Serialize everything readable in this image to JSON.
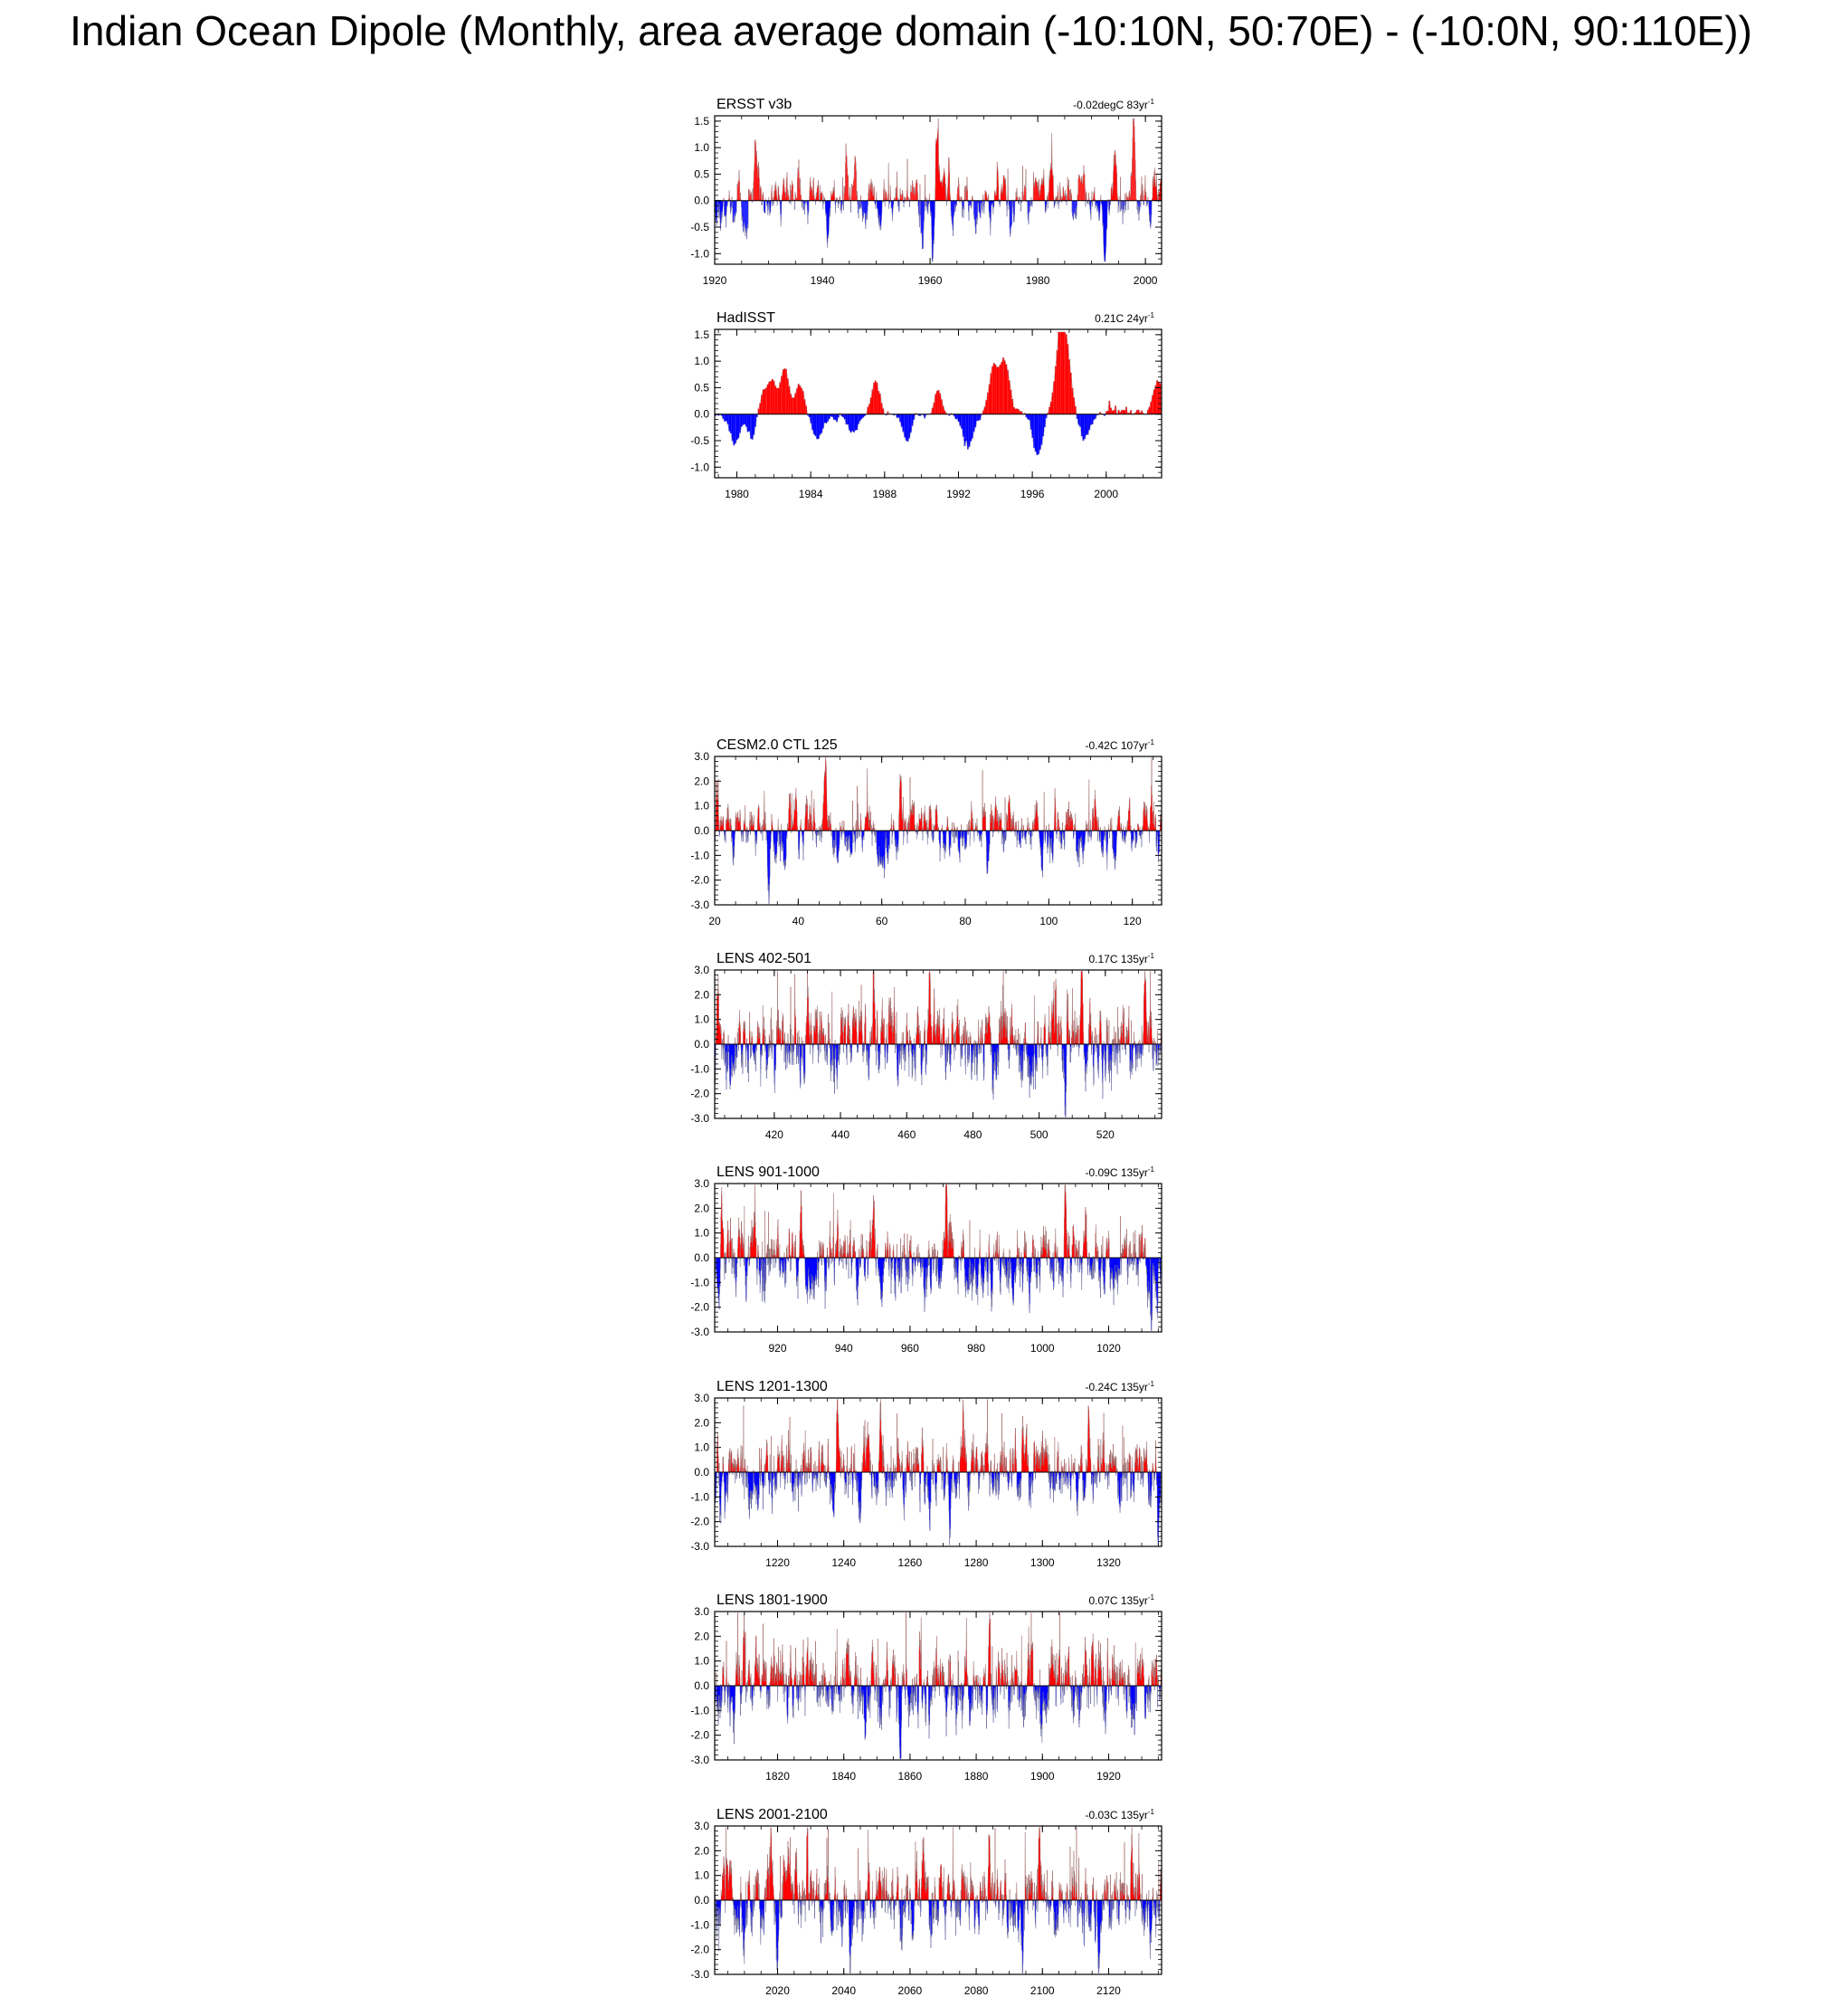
{
  "page_title": "Indian Ocean Dipole (Monthly, area average domain (-10:10N, 50:70E) - (-10:0N, 90:110E))",
  "colors": {
    "positive": "#ff0000",
    "negative": "#0000ff",
    "axis": "#000000",
    "trace": "#888888"
  },
  "chart_data": [
    {
      "type": "bar",
      "title": "ERSST v3b",
      "trend_value": "-0.02degC 83yr",
      "trend_exponent": "-1",
      "x_range": [
        1920,
        2003
      ],
      "ylim": [
        -1.2,
        1.6
      ],
      "yticks": [
        -1.0,
        -0.5,
        0.0,
        0.5,
        1.0,
        1.5
      ],
      "ytick_labels": [
        "-1.0",
        "-0.5",
        "0.0",
        "0.5",
        "1.0",
        "1.5"
      ],
      "xticks": [
        1920,
        1940,
        1960,
        1980,
        2000
      ],
      "xtick_labels": [
        "1920",
        "1940",
        "1960",
        "1980",
        "2000"
      ],
      "amplitude": 0.45,
      "seed": 11,
      "peaks": [
        [
          1924.5,
          0.65
        ],
        [
          1927.5,
          0.6
        ],
        [
          1935.5,
          0.7
        ],
        [
          1944.5,
          0.95
        ],
        [
          1946,
          0.7
        ],
        [
          1961.3,
          1.1
        ],
        [
          1963.5,
          0.7
        ],
        [
          1972.5,
          0.6
        ],
        [
          1982.5,
          0.85
        ],
        [
          1994.5,
          0.9
        ],
        [
          1997.8,
          1.25
        ]
      ],
      "troughs": [
        [
          1926,
          -0.85
        ],
        [
          1941,
          -0.8
        ],
        [
          1958.5,
          -0.75
        ],
        [
          1960.5,
          -0.9
        ],
        [
          1975,
          -0.7
        ],
        [
          1992.5,
          -0.85
        ],
        [
          2001,
          -0.7
        ]
      ]
    },
    {
      "type": "bar",
      "title": "HadISST",
      "trend_value": "0.21C 24yr",
      "trend_exponent": "-1",
      "x_range": [
        1978.8,
        2003
      ],
      "ylim": [
        -1.2,
        1.6
      ],
      "yticks": [
        -1.0,
        -0.5,
        0.0,
        0.5,
        1.0,
        1.5
      ],
      "ytick_labels": [
        "-1.0",
        "-0.5",
        "0.0",
        "0.5",
        "1.0",
        "1.5"
      ],
      "xticks": [
        1980,
        1984,
        1988,
        1992,
        1996,
        2000
      ],
      "xtick_labels": [
        "1980",
        "1984",
        "1988",
        "1992",
        "1996",
        "2000"
      ],
      "amplitude": 0.1,
      "seed": 23,
      "peaks": [
        [
          1981.3,
          0.45
        ],
        [
          1981.9,
          0.65
        ],
        [
          1982.6,
          0.8
        ],
        [
          1983.4,
          0.55
        ],
        [
          1987.5,
          0.55
        ],
        [
          1990.9,
          0.45
        ],
        [
          1993.9,
          0.9
        ],
        [
          1994.5,
          1.0
        ],
        [
          1997.5,
          1.45
        ],
        [
          1997.9,
          1.0
        ],
        [
          2002.8,
          0.6
        ]
      ],
      "troughs": [
        [
          1979.9,
          -0.55
        ],
        [
          1980.9,
          -0.55
        ],
        [
          1984.3,
          -0.45
        ],
        [
          1986.3,
          -0.35
        ],
        [
          1989.2,
          -0.5
        ],
        [
          1992.5,
          -0.65
        ],
        [
          1996.3,
          -0.8
        ],
        [
          1998.8,
          -0.5
        ]
      ]
    },
    {
      "type": "bar",
      "title": "CESM2.0 CTL 125",
      "trend_value": "-0.42C 107yr",
      "trend_exponent": "-1",
      "x_range": [
        20,
        127
      ],
      "ylim": [
        -3.0,
        3.0
      ],
      "yticks": [
        -3.0,
        -2.0,
        -1.0,
        0.0,
        1.0,
        2.0,
        3.0
      ],
      "ytick_labels": [
        "-3.0",
        "-2.0",
        "-1.0",
        "0.0",
        "1.0",
        "2.0",
        "3.0"
      ],
      "xticks": [
        20,
        40,
        60,
        80,
        100,
        120
      ],
      "xtick_labels": [
        "20",
        "40",
        "60",
        "80",
        "100",
        "120"
      ],
      "amplitude": 1.1,
      "seed": 37,
      "peaks": [
        [
          20.5,
          1.9
        ],
        [
          46.5,
          1.8
        ],
        [
          64.5,
          2.0
        ],
        [
          90.5,
          1.3
        ],
        [
          101.5,
          1.6
        ],
        [
          124.5,
          1.7
        ]
      ],
      "troughs": [
        [
          33,
          -1.5
        ],
        [
          37,
          -1.5
        ],
        [
          85.5,
          -2.0
        ],
        [
          113,
          -1.5
        ]
      ]
    },
    {
      "type": "bar",
      "title": "LENS 402-501",
      "trend_value": "0.17C 135yr",
      "trend_exponent": "-1",
      "x_range": [
        402,
        537
      ],
      "ylim": [
        -3.0,
        3.0
      ],
      "yticks": [
        -3.0,
        -2.0,
        -1.0,
        0.0,
        1.0,
        2.0,
        3.0
      ],
      "ytick_labels": [
        "-3.0",
        "-2.0",
        "-1.0",
        "0.0",
        "1.0",
        "2.0",
        "3.0"
      ],
      "xticks": [
        420,
        440,
        460,
        480,
        500,
        520
      ],
      "xtick_labels": [
        "420",
        "440",
        "460",
        "480",
        "500",
        "520"
      ],
      "amplitude": 1.5,
      "seed": 41,
      "peaks": [
        [
          403,
          2.6
        ],
        [
          430,
          2.6
        ],
        [
          450,
          2.4
        ],
        [
          467,
          2.4
        ],
        [
          505,
          2.5
        ],
        [
          513,
          2.5
        ],
        [
          532,
          2.3
        ]
      ],
      "troughs": [
        [
          416,
          -2.1
        ],
        [
          445,
          -1.8
        ],
        [
          486,
          -2.2
        ],
        [
          508,
          -2.6
        ]
      ]
    },
    {
      "type": "bar",
      "title": "LENS 901-1000",
      "trend_value": "-0.09C 135yr",
      "trend_exponent": "-1",
      "x_range": [
        901,
        1036
      ],
      "ylim": [
        -3.0,
        3.0
      ],
      "yticks": [
        -3.0,
        -2.0,
        -1.0,
        0.0,
        1.0,
        2.0,
        3.0
      ],
      "ytick_labels": [
        "-3.0",
        "-2.0",
        "-1.0",
        "0.0",
        "1.0",
        "2.0",
        "3.0"
      ],
      "xticks": [
        920,
        940,
        960,
        980,
        1000,
        1020
      ],
      "xtick_labels": [
        "920",
        "940",
        "960",
        "980",
        "1000",
        "1020"
      ],
      "amplitude": 1.4,
      "seed": 53,
      "peaks": [
        [
          903,
          1.8
        ],
        [
          927,
          2.5
        ],
        [
          949,
          2.4
        ],
        [
          971,
          2.8
        ],
        [
          1007,
          2.6
        ],
        [
          1013,
          2.1
        ]
      ],
      "troughs": [
        [
          926,
          -2.2
        ],
        [
          944,
          -1.8
        ],
        [
          996,
          -2.1
        ],
        [
          1033,
          -1.8
        ]
      ]
    },
    {
      "type": "bar",
      "title": "LENS 1201-1300",
      "trend_value": "-0.24C 135yr",
      "trend_exponent": "-1",
      "x_range": [
        1201,
        1336
      ],
      "ylim": [
        -3.0,
        3.0
      ],
      "yticks": [
        -3.0,
        -2.0,
        -1.0,
        0.0,
        1.0,
        2.0,
        3.0
      ],
      "ytick_labels": [
        "-3.0",
        "-2.0",
        "-1.0",
        "0.0",
        "1.0",
        "2.0",
        "3.0"
      ],
      "xticks": [
        1220,
        1240,
        1260,
        1280,
        1300,
        1320
      ],
      "xtick_labels": [
        "1220",
        "1240",
        "1260",
        "1280",
        "1300",
        "1320"
      ],
      "amplitude": 1.3,
      "seed": 67,
      "peaks": [
        [
          1202,
          2.4
        ],
        [
          1238,
          2.4
        ],
        [
          1251,
          2.5
        ],
        [
          1276,
          2.4
        ],
        [
          1294,
          2.5
        ],
        [
          1314,
          2.3
        ]
      ],
      "troughs": [
        [
          1204,
          -2.1
        ],
        [
          1266,
          -2.4
        ],
        [
          1272,
          -2.6
        ],
        [
          1335,
          -1.9
        ]
      ]
    },
    {
      "type": "bar",
      "title": "LENS 1801-1900",
      "trend_value": "0.07C 135yr",
      "trend_exponent": "-1",
      "x_range": [
        1801,
        1936
      ],
      "ylim": [
        -3.0,
        3.0
      ],
      "yticks": [
        -3.0,
        -2.0,
        -1.0,
        0.0,
        1.0,
        2.0,
        3.0
      ],
      "ytick_labels": [
        "-3.0",
        "-2.0",
        "-1.0",
        "0.0",
        "1.0",
        "2.0",
        "3.0"
      ],
      "xticks": [
        1820,
        1840,
        1860,
        1880,
        1900,
        1920
      ],
      "xtick_labels": [
        "1820",
        "1840",
        "1860",
        "1880",
        "1900",
        "1920"
      ],
      "amplitude": 1.5,
      "seed": 79,
      "peaks": [
        [
          1810,
          2.8
        ],
        [
          1829,
          2.3
        ],
        [
          1863,
          2.6
        ],
        [
          1884,
          2.4
        ],
        [
          1910,
          2.8
        ],
        [
          1913,
          2.4
        ]
      ],
      "troughs": [
        [
          1826,
          -2.1
        ],
        [
          1857,
          -2.1
        ],
        [
          1876,
          -1.9
        ],
        [
          1910,
          -2.1
        ]
      ]
    },
    {
      "type": "bar",
      "title": "LENS 2001-2100",
      "trend_value": "-0.03C 135yr",
      "trend_exponent": "-1",
      "x_range": [
        2001,
        2136
      ],
      "ylim": [
        -3.0,
        3.0
      ],
      "yticks": [
        -3.0,
        -2.0,
        -1.0,
        0.0,
        1.0,
        2.0,
        3.0
      ],
      "ytick_labels": [
        "-3.0",
        "-2.0",
        "-1.0",
        "0.0",
        "1.0",
        "2.0",
        "3.0"
      ],
      "xticks": [
        2020,
        2040,
        2060,
        2080,
        2100,
        2120
      ],
      "xtick_labels": [
        "2020",
        "2040",
        "2060",
        "2080",
        "2100",
        "2120"
      ],
      "amplitude": 1.5,
      "seed": 83,
      "peaks": [
        [
          2018,
          2.8
        ],
        [
          2029,
          2.8
        ],
        [
          2064,
          2.4
        ],
        [
          2084,
          2.7
        ],
        [
          2099,
          2.4
        ],
        [
          2127,
          2.3
        ]
      ],
      "troughs": [
        [
          2020,
          -2.4
        ],
        [
          2042,
          -2.2
        ],
        [
          2094,
          -2.2
        ],
        [
          2117,
          -2.0
        ]
      ]
    }
  ]
}
